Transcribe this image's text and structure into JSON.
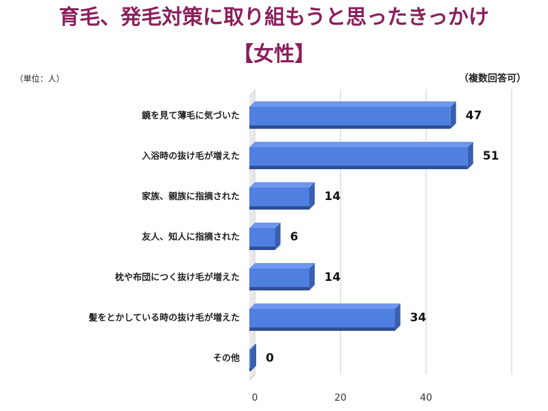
{
  "title": {
    "line1": "育毛、発毛対策に取り組もうと思ったきっかけ",
    "line2": "【女性】"
  },
  "unit_label": "（単位：人）",
  "note_label": "（複数回答可）",
  "chart_data": {
    "type": "bar",
    "orientation": "horizontal",
    "categories": [
      "鏡を見て薄毛に気づいた",
      "入浴時の抜け毛が増えた",
      "家族、親族に指摘された",
      "友人、知人に指摘された",
      "枕や布団につく抜け毛が増えた",
      "髪をとかしている時の抜け毛が増えた",
      "その他"
    ],
    "values": [
      47,
      51,
      14,
      6,
      14,
      34,
      0
    ],
    "xlim": [
      0,
      60
    ],
    "x_ticks": [
      0,
      20,
      40
    ],
    "grid": true,
    "colors": {
      "bar_front": "#4f7fe0",
      "bar_top": "#6d97ee",
      "bar_side": "#3a5fb0",
      "bar_bottom": "#2f4f93",
      "grid": "#c8c8c8"
    }
  }
}
